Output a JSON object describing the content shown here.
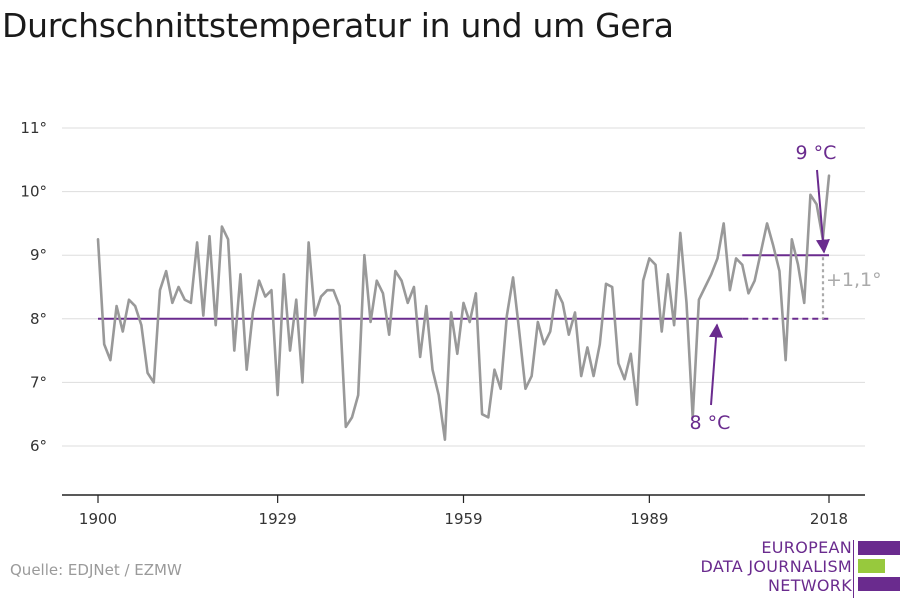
{
  "title": "Durchschnittstemperatur in und um Gera",
  "source": "Quelle: EDJNet / EZMW",
  "logo": {
    "lines": [
      "EUROPEAN",
      "DATA JOURNALISM",
      "NETWORK"
    ],
    "colors": {
      "purple": "#6a2b8e",
      "green": "#97c93d"
    }
  },
  "colors": {
    "series": "#999999",
    "avg": "#6a2b8e",
    "diff": "#aaaaaa",
    "grid": "#dddddd"
  },
  "chart_data": {
    "type": "line",
    "title": "Durchschnittstemperatur in und um Gera",
    "xlabel": "",
    "ylabel": "",
    "x_range": [
      1900,
      2018
    ],
    "y_range": [
      5,
      11
    ],
    "y_ticks": [
      6,
      7,
      8,
      9,
      10,
      11
    ],
    "y_tick_labels": [
      "6°",
      "7°",
      "8°",
      "9°",
      "10°",
      "11°"
    ],
    "x_ticks": [
      1900,
      1929,
      1959,
      1989,
      2018
    ],
    "x_tick_labels": [
      "1900",
      "1929",
      "1959",
      "1989",
      "2018"
    ],
    "grid": true,
    "series": [
      {
        "x": [
          1900,
          1901,
          1902,
          1903,
          1904,
          1905,
          1906,
          1907,
          1908,
          1909,
          1910,
          1911,
          1912,
          1913,
          1914,
          1915,
          1916,
          1917,
          1918,
          1919,
          1920,
          1921,
          1922,
          1923,
          1924,
          1925,
          1926,
          1927,
          1928,
          1929,
          1930,
          1931,
          1932,
          1933,
          1934,
          1935,
          1936,
          1937,
          1938,
          1939,
          1940,
          1941,
          1942,
          1943,
          1944,
          1945,
          1946,
          1947,
          1948,
          1949,
          1950,
          1951,
          1952,
          1953,
          1954,
          1955,
          1956,
          1957,
          1958,
          1959,
          1960,
          1961,
          1962,
          1963,
          1964,
          1965,
          1966,
          1967,
          1968,
          1969,
          1970,
          1971,
          1972,
          1973,
          1974,
          1975,
          1976,
          1977,
          1978,
          1979,
          1980,
          1981,
          1982,
          1983,
          1984,
          1985,
          1986,
          1987,
          1988,
          1989,
          1990,
          1991,
          1992,
          1993,
          1994,
          1995,
          1996,
          1997,
          1998,
          1999,
          2000,
          2001,
          2002,
          2003,
          2004,
          2005,
          2006,
          2007,
          2008,
          2009,
          2010,
          2011,
          2012,
          2013,
          2014,
          2015,
          2016,
          2017,
          2018
        ],
        "values": [
          9.25,
          7.6,
          7.35,
          8.2,
          7.8,
          8.3,
          8.2,
          7.9,
          7.15,
          7.0,
          8.45,
          8.75,
          8.25,
          8.5,
          8.3,
          8.25,
          9.2,
          8.05,
          9.3,
          7.9,
          9.45,
          9.25,
          7.5,
          8.7,
          7.2,
          8.1,
          8.6,
          8.35,
          8.45,
          6.8,
          8.7,
          7.5,
          8.3,
          7.0,
          9.2,
          8.05,
          8.35,
          8.45,
          8.45,
          8.2,
          6.3,
          6.45,
          6.8,
          9.0,
          7.95,
          8.6,
          8.4,
          7.75,
          8.75,
          8.6,
          8.25,
          8.5,
          7.4,
          8.2,
          7.2,
          6.8,
          6.1,
          8.1,
          7.45,
          8.25,
          7.95,
          8.4,
          6.5,
          6.45,
          7.2,
          6.9,
          8.05,
          8.65,
          7.8,
          6.9,
          7.1,
          7.95,
          7.6,
          7.8,
          8.45,
          8.25,
          7.75,
          8.1,
          7.1,
          7.55,
          7.1,
          7.6,
          8.55,
          8.5,
          7.3,
          7.05,
          7.45,
          6.65,
          8.6,
          8.95,
          8.85,
          7.8,
          8.7,
          7.9,
          9.35,
          8.25,
          6.45,
          8.3,
          8.5,
          8.7,
          8.95,
          9.5,
          8.45,
          8.95,
          8.85,
          8.4,
          8.6,
          9.05,
          9.5,
          9.15,
          8.75,
          7.35,
          9.25,
          8.85,
          8.25,
          9.95,
          9.8,
          9.25,
          10.25
        ]
      }
    ],
    "reference_lines": [
      {
        "value": 8.0,
        "from": 1900,
        "to": 2004,
        "style": "solid"
      },
      {
        "value": 8.0,
        "from": 2004,
        "to": 2018,
        "style": "dashed"
      },
      {
        "value": 9.0,
        "from": 2004,
        "to": 2018,
        "style": "solid"
      }
    ],
    "annotations": [
      {
        "label": "9 °C",
        "arrow_to": [
          2018,
          9.0
        ]
      },
      {
        "label": "8 °C",
        "arrow_to": [
          2004,
          8.0
        ]
      },
      {
        "label": "+1,1°",
        "between": [
          8.0,
          9.0
        ],
        "at": 2018
      }
    ]
  }
}
